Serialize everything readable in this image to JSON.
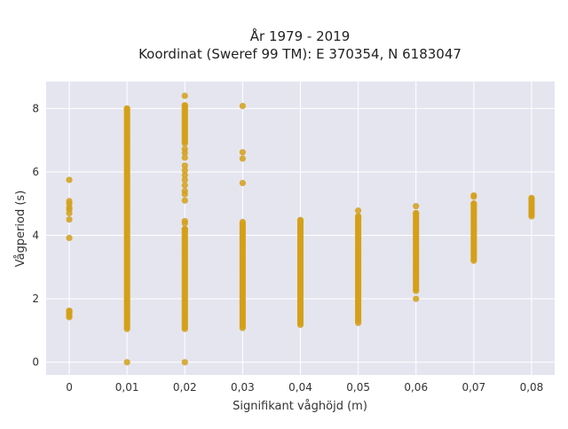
{
  "chart_data": {
    "type": "scatter",
    "title_line1": "År 1979 - 2019",
    "title_line2": "Koordinat (Sweref 99 TM): E 370354, N 6183047",
    "xlabel": "Signifikant våghöjd (m)",
    "ylabel": "Vågperiod (s)",
    "xlim": [
      -0.004,
      0.084
    ],
    "ylim": [
      -0.4,
      8.85
    ],
    "x_ticks": [
      0,
      0.01,
      0.02,
      0.03,
      0.04,
      0.05,
      0.06,
      0.07,
      0.08
    ],
    "x_tick_labels": [
      "0",
      "0,01",
      "0,02",
      "0,03",
      "0,04",
      "0,05",
      "0,06",
      "0,07",
      "0,08"
    ],
    "y_ticks": [
      0,
      2,
      4,
      6,
      8
    ],
    "y_tick_labels": [
      "0",
      "2",
      "4",
      "6",
      "8"
    ],
    "grid": true,
    "point_color": "#d4a017",
    "background_color": "#e5e5f0",
    "columns": [
      {
        "x": 0,
        "ranges": [
          [
            1.42,
            1.62
          ]
        ],
        "points": [
          5.75,
          5.08,
          5.0,
          4.88,
          4.82,
          4.7,
          4.5,
          3.92
        ]
      },
      {
        "x": 0.01,
        "ranges": [
          [
            1.05,
            8.0
          ]
        ],
        "points": [
          0.0
        ]
      },
      {
        "x": 0.02,
        "ranges": [
          [
            1.05,
            4.2
          ],
          [
            6.9,
            8.1
          ]
        ],
        "points": [
          8.4,
          6.72,
          6.6,
          6.45,
          6.2,
          6.05,
          5.9,
          5.75,
          5.58,
          5.4,
          5.3,
          5.1,
          4.45,
          4.38,
          0.0
        ]
      },
      {
        "x": 0.03,
        "ranges": [
          [
            1.08,
            4.42
          ]
        ],
        "points": [
          8.08,
          6.62,
          6.42,
          5.65
        ]
      },
      {
        "x": 0.04,
        "ranges": [
          [
            1.18,
            4.48
          ]
        ],
        "points": []
      },
      {
        "x": 0.05,
        "ranges": [
          [
            1.3,
            4.6
          ]
        ],
        "points": [
          4.78,
          1.24
        ]
      },
      {
        "x": 0.06,
        "ranges": [
          [
            2.25,
            4.7
          ]
        ],
        "points": [
          4.92,
          2.0
        ]
      },
      {
        "x": 0.07,
        "ranges": [
          [
            3.2,
            5.0
          ]
        ],
        "points": [
          5.22,
          5.26
        ]
      },
      {
        "x": 0.08,
        "ranges": [
          [
            4.6,
            5.18
          ]
        ],
        "points": []
      }
    ]
  }
}
